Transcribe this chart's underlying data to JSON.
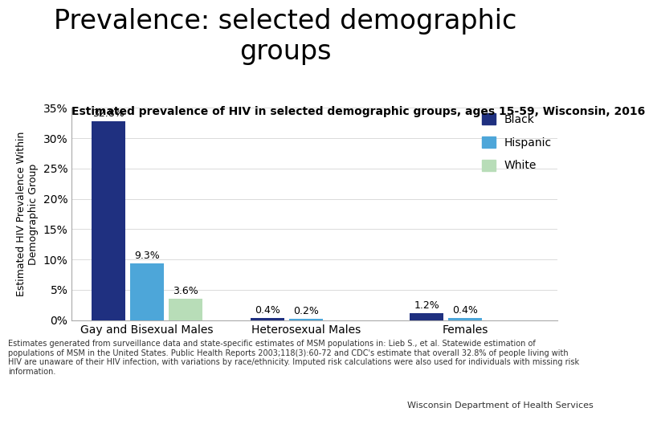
{
  "title": "Prevalence: selected demographic\ngroups",
  "subtitle": "Estimated prevalence of HIV in selected demographic groups, ages 15-59, Wisconsin, 2016",
  "ylabel": "Estimated HIV Prevalence Within\nDemographic Group",
  "categories": [
    "Gay and Bisexual Males",
    "Heterosexual Males",
    "Females"
  ],
  "groups": [
    "Black",
    "Hispanic",
    "White"
  ],
  "values": [
    [
      32.8,
      9.3,
      3.6
    ],
    [
      0.4,
      0.2,
      0.0
    ],
    [
      1.2,
      0.4,
      0.0
    ]
  ],
  "colors": [
    "#1f3080",
    "#4da6d9",
    "#b8ddb8"
  ],
  "bar_labels": [
    [
      "32.8%",
      "9.3%",
      "3.6%"
    ],
    [
      "0.4%",
      "0.2%",
      ""
    ],
    [
      "1.2%",
      "0.4%",
      ""
    ]
  ],
  "ylim": [
    0,
    35
  ],
  "yticks": [
    0,
    5,
    10,
    15,
    20,
    25,
    30,
    35
  ],
  "ytick_labels": [
    "0%",
    "5%",
    "10%",
    "15%",
    "20%",
    "25%",
    "30%",
    "35%"
  ],
  "footnote_line1": "Estimates generated from surveillance data and state-specific estimates of MSM populations in: Lieb S., et al. Statewide estimation of",
  "footnote_line2": "populations of MSM in the United States. Public Health Reports 2003;118(3):60-72 and CDC's estimate that overall 32.8% of people living with",
  "footnote_line3": "HIV are unaware of their HIV infection, with variations by race/ethnicity. Imputed risk calculations were also used for individuals with missing risk",
  "footnote_line4": "information.",
  "footer_right": "Wisconsin Department of Health Services",
  "background_color": "#ffffff",
  "title_fontsize": 24,
  "subtitle_fontsize": 10,
  "ylabel_fontsize": 9,
  "tick_fontsize": 10,
  "legend_fontsize": 10,
  "footnote_fontsize": 7,
  "bar_label_fontsize": 9
}
